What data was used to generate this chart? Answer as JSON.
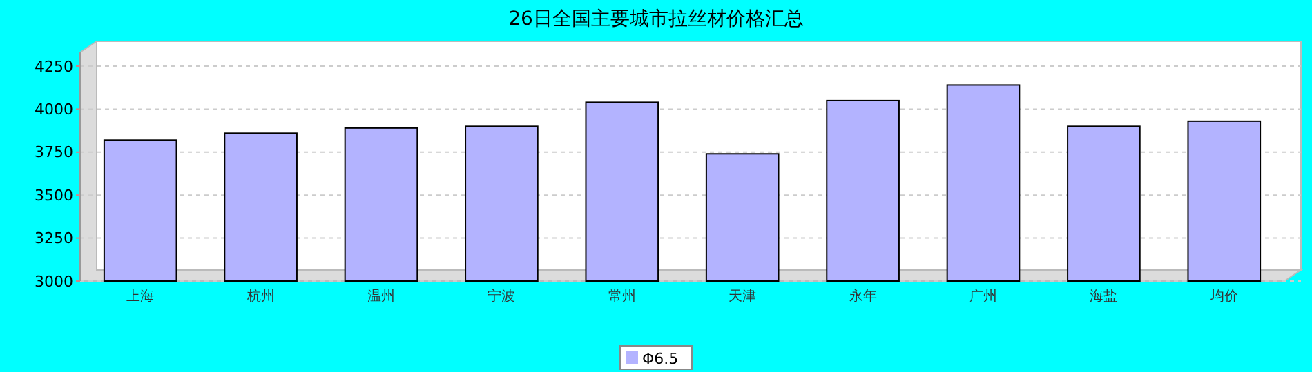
{
  "chart_data": {
    "type": "bar",
    "title": "26日全国主要城市拉丝材价格汇总",
    "categories": [
      "上海",
      "杭州",
      "温州",
      "宁波",
      "常州",
      "天津",
      "永年",
      "广州",
      "海盐",
      "均价"
    ],
    "series": [
      {
        "name": "Φ6.5",
        "color": "#b3b3ff",
        "values": [
          3820,
          3860,
          3890,
          3900,
          4040,
          3740,
          4050,
          4140,
          3900,
          3930
        ]
      }
    ],
    "ylim": [
      3000,
      4330
    ],
    "yticks": [
      3000,
      3250,
      3500,
      3750,
      4000,
      4250
    ],
    "grid": "y",
    "legend": "bottom"
  }
}
